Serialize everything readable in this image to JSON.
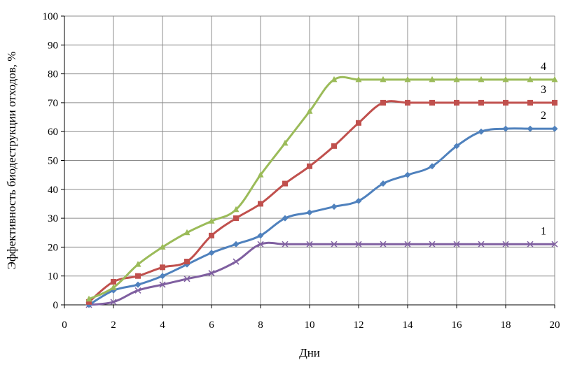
{
  "chart_data": {
    "type": "line",
    "xlabel": "Дни",
    "ylabel": "Эффективность биодеструкции отходов, %",
    "xlim": [
      0,
      20
    ],
    "ylim": [
      0,
      100
    ],
    "xticks": [
      "0",
      "2",
      "4",
      "6",
      "8",
      "10",
      "12",
      "14",
      "16",
      "18",
      "20"
    ],
    "yticks": [
      "0",
      "10",
      "20",
      "30",
      "40",
      "50",
      "60",
      "70",
      "80",
      "90",
      "100"
    ],
    "grid": "vertical-and-horizontal",
    "x": [
      1,
      2,
      3,
      4,
      5,
      6,
      7,
      8,
      9,
      10,
      11,
      12,
      13,
      14,
      15,
      16,
      17,
      18,
      19,
      20
    ],
    "series": [
      {
        "name": "1",
        "color": "#7f5fa0",
        "marker": "x",
        "values": [
          0,
          1,
          5,
          7,
          9,
          11,
          15,
          21,
          21,
          21,
          21,
          21,
          21,
          21,
          21,
          21,
          21,
          21,
          21,
          21
        ]
      },
      {
        "name": "2",
        "color": "#4f81bd",
        "marker": "diamond",
        "values": [
          0,
          5,
          7,
          10,
          14,
          18,
          21,
          24,
          30,
          32,
          34,
          36,
          42,
          45,
          48,
          55,
          60,
          61,
          61,
          61
        ]
      },
      {
        "name": "3",
        "color": "#c0504d",
        "marker": "square",
        "values": [
          1,
          8,
          10,
          13,
          15,
          24,
          30,
          35,
          42,
          48,
          55,
          63,
          70,
          70,
          70,
          70,
          70,
          70,
          70,
          70
        ]
      },
      {
        "name": "4",
        "color": "#9bbb59",
        "marker": "triangle",
        "values": [
          2,
          6,
          14,
          20,
          25,
          29,
          33,
          45,
          56,
          67,
          78,
          78,
          78,
          78,
          78,
          78,
          78,
          78,
          78,
          78
        ]
      }
    ]
  }
}
